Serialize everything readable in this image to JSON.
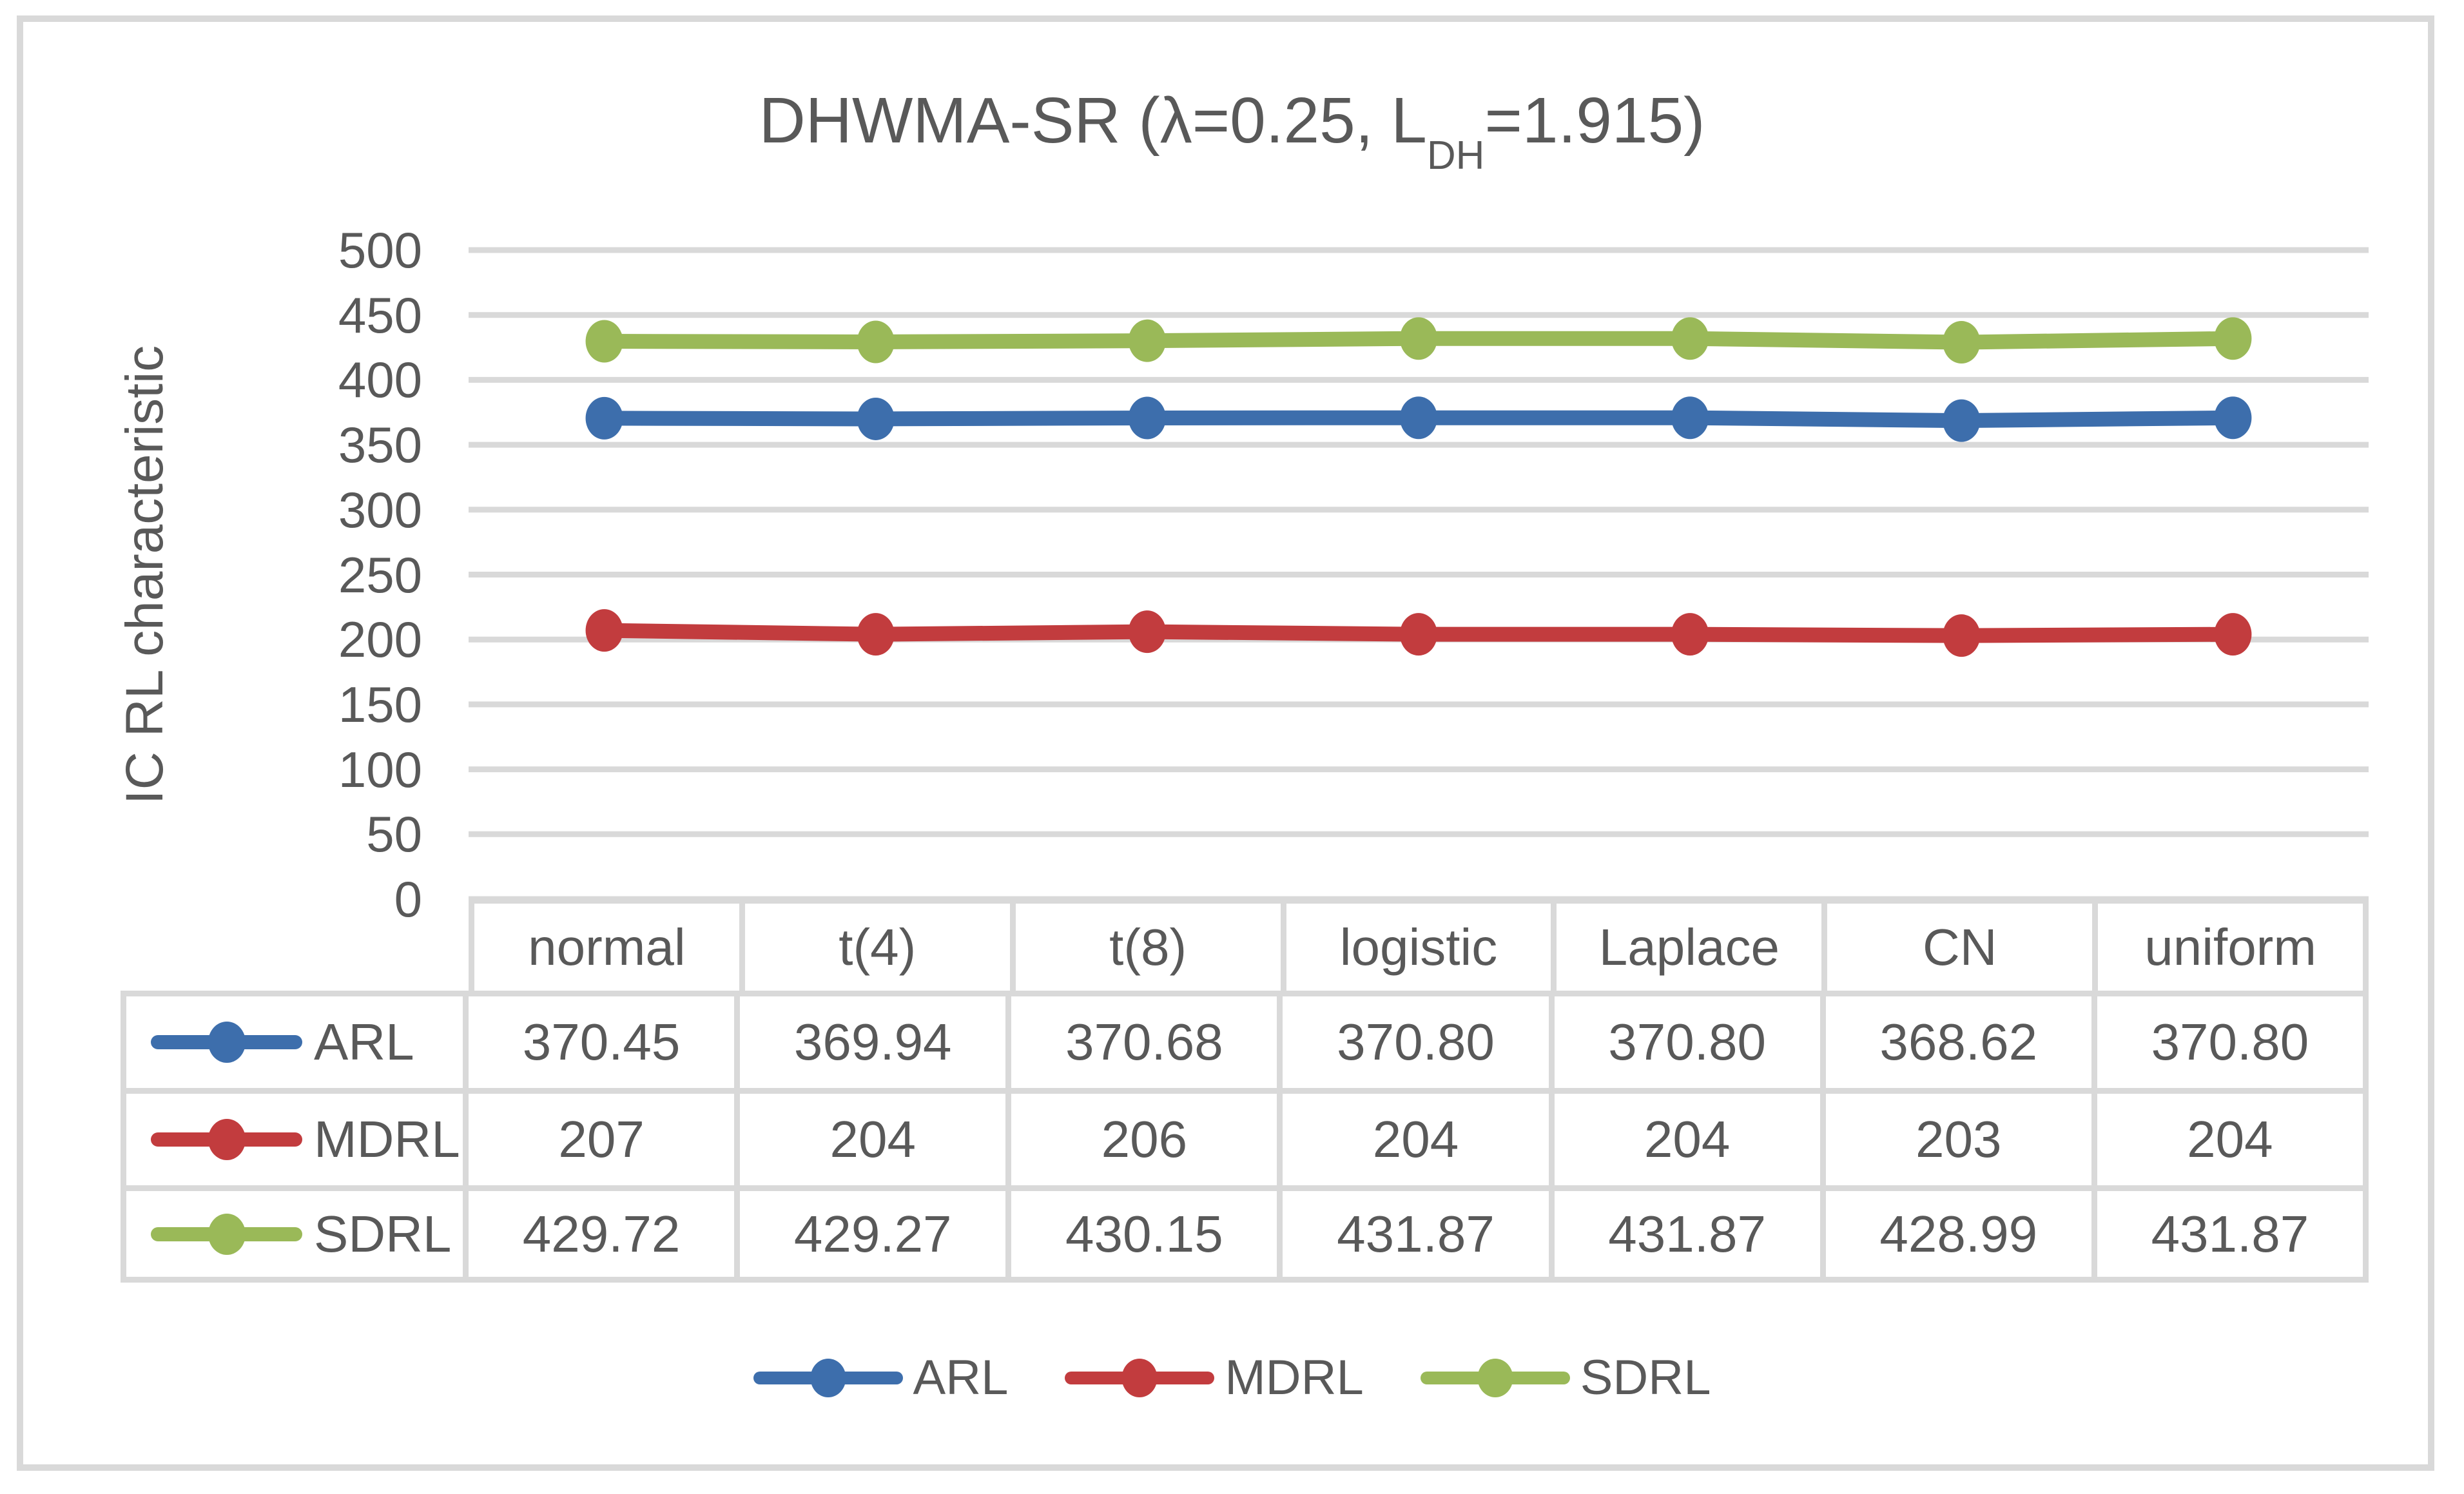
{
  "figure": {
    "title_prefix": "DHWMA-SR (λ=0.25, L",
    "title_subscript": "DH",
    "title_suffix": "=1.915)"
  },
  "chart_data": {
    "type": "line",
    "title": "DHWMA-SR (λ=0.25, L_DH=1.915)",
    "xlabel": "",
    "ylabel": "IC RL characteristic",
    "ylim": [
      0,
      500
    ],
    "ytick_step": 50,
    "yticks": [
      500,
      450,
      400,
      350,
      300,
      250,
      200,
      150,
      100,
      50,
      0
    ],
    "grid": true,
    "legend_position": "bottom",
    "data_table_shown": true,
    "categories": [
      "normal",
      "t(4)",
      "t(8)",
      "logistic",
      "Laplace",
      "CN",
      "uniform"
    ],
    "series": [
      {
        "name": "ARL",
        "color": "#3D6EAC",
        "values": [
          370.45,
          369.94,
          370.68,
          370.8,
          370.8,
          368.62,
          370.8
        ],
        "display": [
          "370.45",
          "369.94",
          "370.68",
          "370.80",
          "370.80",
          "368.62",
          "370.80"
        ]
      },
      {
        "name": "MDRL",
        "color": "#C23C3E",
        "values": [
          207,
          204,
          206,
          204,
          204,
          203,
          204
        ],
        "display": [
          "207",
          "204",
          "206",
          "204",
          "204",
          "203",
          "204"
        ]
      },
      {
        "name": "SDRL",
        "color": "#9AB958",
        "values": [
          429.72,
          429.27,
          430.15,
          431.87,
          431.87,
          428.99,
          431.87
        ],
        "display": [
          "429.72",
          "429.27",
          "430.15",
          "431.87",
          "431.87",
          "428.99",
          "431.87"
        ]
      }
    ],
    "colors": {
      "grid": "#D9D9D9",
      "frame": "#D9D9D9",
      "text": "#595959"
    }
  }
}
